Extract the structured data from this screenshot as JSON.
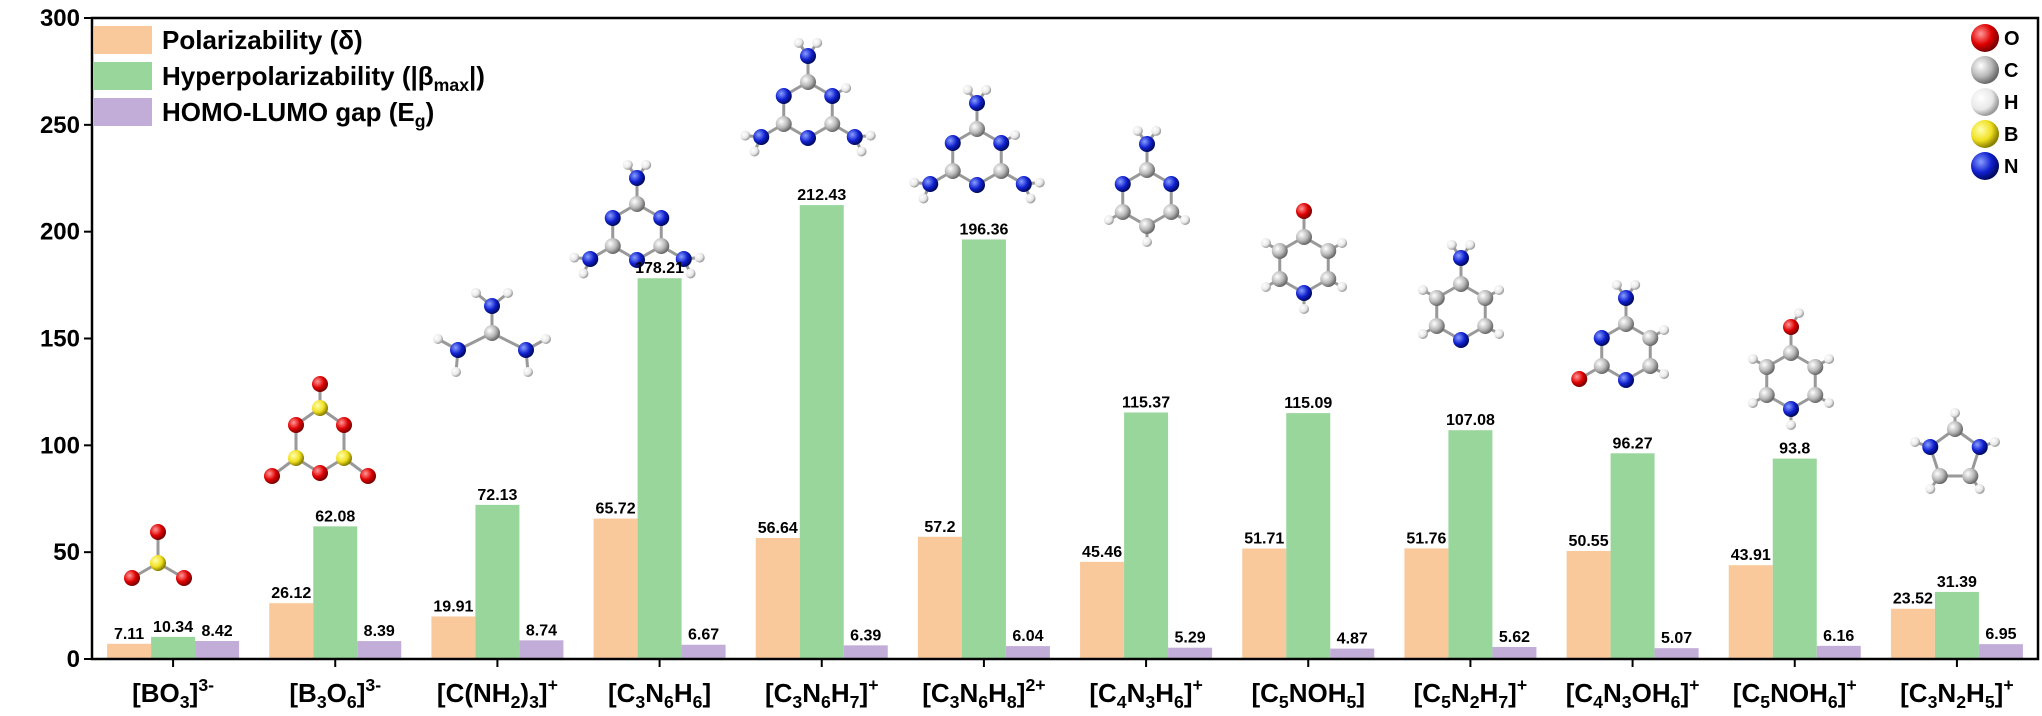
{
  "chart_data": {
    "type": "bar",
    "ylim": [
      0,
      300
    ],
    "yticks": [
      0,
      50,
      100,
      150,
      200,
      250,
      300
    ],
    "categories": [
      {
        "parts": [
          [
            "[BO",
            "n"
          ],
          [
            "3",
            "sub"
          ],
          [
            "]",
            "n"
          ],
          [
            "3-",
            "sup"
          ]
        ]
      },
      {
        "parts": [
          [
            "[B",
            "n"
          ],
          [
            "3",
            "sub"
          ],
          [
            "O",
            "n"
          ],
          [
            "6",
            "sub"
          ],
          [
            "]",
            "n"
          ],
          [
            "3-",
            "sup"
          ]
        ]
      },
      {
        "parts": [
          [
            "[C(NH",
            "n"
          ],
          [
            "2",
            "sub"
          ],
          [
            ")",
            "n"
          ],
          [
            "3",
            "sub"
          ],
          [
            "]",
            "n"
          ],
          [
            "+",
            "sup"
          ]
        ]
      },
      {
        "parts": [
          [
            "[C",
            "n"
          ],
          [
            "3",
            "sub"
          ],
          [
            "N",
            "n"
          ],
          [
            "6",
            "sub"
          ],
          [
            "H",
            "n"
          ],
          [
            "6",
            "sub"
          ],
          [
            "]",
            "n"
          ]
        ]
      },
      {
        "parts": [
          [
            "[C",
            "n"
          ],
          [
            "3",
            "sub"
          ],
          [
            "N",
            "n"
          ],
          [
            "6",
            "sub"
          ],
          [
            "H",
            "n"
          ],
          [
            "7",
            "sub"
          ],
          [
            "]",
            "n"
          ],
          [
            "+",
            "sup"
          ]
        ]
      },
      {
        "parts": [
          [
            "[C",
            "n"
          ],
          [
            "3",
            "sub"
          ],
          [
            "N",
            "n"
          ],
          [
            "6",
            "sub"
          ],
          [
            "H",
            "n"
          ],
          [
            "8",
            "sub"
          ],
          [
            "]",
            "n"
          ],
          [
            "2+",
            "sup"
          ]
        ]
      },
      {
        "parts": [
          [
            "[C",
            "n"
          ],
          [
            "4",
            "sub"
          ],
          [
            "N",
            "n"
          ],
          [
            "3",
            "sub"
          ],
          [
            "H",
            "n"
          ],
          [
            "6",
            "sub"
          ],
          [
            "]",
            "n"
          ],
          [
            "+",
            "sup"
          ]
        ]
      },
      {
        "parts": [
          [
            "[C",
            "n"
          ],
          [
            "5",
            "sub"
          ],
          [
            "NOH",
            "n"
          ],
          [
            "5",
            "sub"
          ],
          [
            "]",
            "n"
          ]
        ]
      },
      {
        "parts": [
          [
            "[C",
            "n"
          ],
          [
            "5",
            "sub"
          ],
          [
            "N",
            "n"
          ],
          [
            "2",
            "sub"
          ],
          [
            "H",
            "n"
          ],
          [
            "7",
            "sub"
          ],
          [
            "]",
            "n"
          ],
          [
            "+",
            "sup"
          ]
        ]
      },
      {
        "parts": [
          [
            "[C",
            "n"
          ],
          [
            "4",
            "sub"
          ],
          [
            "N",
            "n"
          ],
          [
            "3",
            "sub"
          ],
          [
            "OH",
            "n"
          ],
          [
            "6",
            "sub"
          ],
          [
            "]",
            "n"
          ],
          [
            "+",
            "sup"
          ]
        ]
      },
      {
        "parts": [
          [
            "[C",
            "n"
          ],
          [
            "5",
            "sub"
          ],
          [
            "NOH",
            "n"
          ],
          [
            "6",
            "sub"
          ],
          [
            "]",
            "n"
          ],
          [
            "+",
            "sup"
          ]
        ]
      },
      {
        "parts": [
          [
            "[C",
            "n"
          ],
          [
            "3",
            "sub"
          ],
          [
            "N",
            "n"
          ],
          [
            "2",
            "sub"
          ],
          [
            "H",
            "n"
          ],
          [
            "5",
            "sub"
          ],
          [
            "]",
            "n"
          ],
          [
            "+",
            "sup"
          ]
        ]
      }
    ],
    "series": [
      {
        "key": "polarizability",
        "color": "#f9c89b",
        "legend_parts": [
          [
            "Polarizability (δ)",
            "n"
          ]
        ],
        "values": [
          7.11,
          26.12,
          19.91,
          65.72,
          56.64,
          57.2,
          45.46,
          51.71,
          51.76,
          50.55,
          43.91,
          23.52
        ],
        "labels": [
          "7.11",
          "26.12",
          "19.91",
          "65.72",
          "56.64",
          "57.2",
          "45.46",
          "51.71",
          "51.76",
          "50.55",
          "43.91",
          "23.52"
        ]
      },
      {
        "key": "hyperpolarizability",
        "color": "#98d69c",
        "legend_parts": [
          [
            "Hyperpolarizability (|β",
            "n"
          ],
          [
            "max",
            "sub"
          ],
          [
            "|)",
            "n"
          ]
        ],
        "values": [
          10.34,
          62.08,
          72.13,
          178.21,
          212.43,
          196.36,
          115.37,
          115.09,
          107.08,
          96.27,
          93.8,
          31.39
        ],
        "labels": [
          "10.34",
          "62.08",
          "72.13",
          "178.21",
          "212.43",
          "196.36",
          "115.37",
          "115.09",
          "107.08",
          "96.27",
          "93.8",
          "31.39"
        ]
      },
      {
        "key": "gap",
        "color": "#c2acd8",
        "legend_parts": [
          [
            "HOMO-LUMO gap (E",
            "n"
          ],
          [
            "g",
            "sub"
          ],
          [
            ")",
            "n"
          ]
        ],
        "values": [
          8.42,
          8.39,
          8.74,
          6.67,
          6.39,
          6.04,
          5.29,
          4.87,
          5.62,
          5.07,
          6.16,
          6.95
        ],
        "labels": [
          "8.42",
          "8.39",
          "8.74",
          "6.67",
          "6.39",
          "6.04",
          "5.29",
          "4.87",
          "5.62",
          "5.07",
          "6.16",
          "6.95"
        ]
      }
    ],
    "element_legend": [
      {
        "symbol": "O",
        "color": "#e00000",
        "icon": "oxygen-atom-icon"
      },
      {
        "symbol": "C",
        "color": "#b8b8b8",
        "icon": "carbon-atom-icon"
      },
      {
        "symbol": "H",
        "color": "#e8e8e8",
        "icon": "hydrogen-atom-icon"
      },
      {
        "symbol": "B",
        "color": "#f0e020",
        "icon": "boron-atom-icon"
      },
      {
        "symbol": "N",
        "color": "#1020d0",
        "icon": "nitrogen-atom-icon"
      }
    ],
    "molecule_icons": [
      "BO3-molecule-icon",
      "B3O6-molecule-icon",
      "guanidinium-molecule-icon",
      "melamine-molecule-icon",
      "melaminium-molecule-icon",
      "melaminium-dication-molecule-icon",
      "aminopyrimidine-molecule-icon",
      "pyridone-molecule-icon",
      "aminopyridinium-molecule-icon",
      "cytosinium-molecule-icon",
      "hydroxypyridinium-molecule-icon",
      "imidazolium-molecule-icon"
    ],
    "grid": false
  }
}
